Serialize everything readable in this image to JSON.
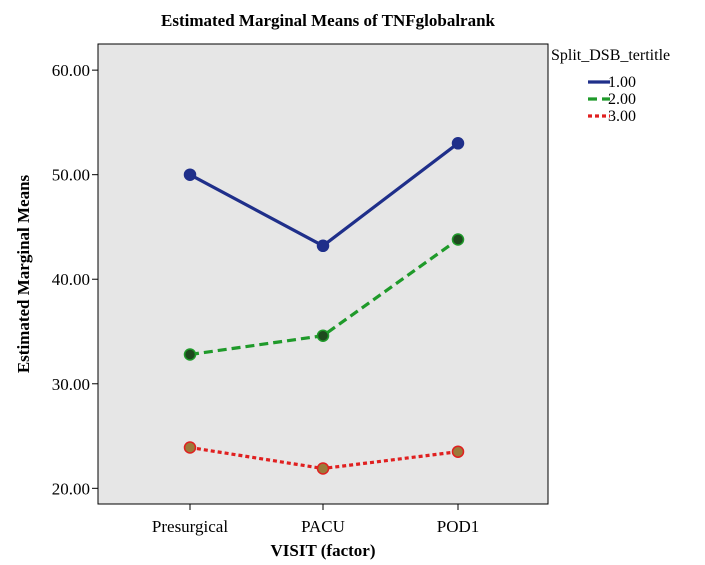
{
  "chart_data": {
    "type": "line",
    "title": "Estimated Marginal Means of TNFglobalrank",
    "xlabel": "VISIT (factor)",
    "ylabel": "Estimated Marginal Means",
    "categories": [
      "Presurgical",
      "PACU",
      "POD1"
    ],
    "yticks": [
      "20.00",
      "30.00",
      "40.00",
      "50.00",
      "60.00"
    ],
    "ylim": [
      18.5,
      62.5
    ],
    "grid": false,
    "legend": {
      "title": "Split_DSB_tertitle",
      "placement": "outside-top-right"
    },
    "series": [
      {
        "name": "1.00",
        "values": [
          50.0,
          43.2,
          53.0
        ],
        "color": "#1f2f8a",
        "dash": "solid",
        "marker_color": "#1f2f8a"
      },
      {
        "name": "2.00",
        "values": [
          32.8,
          34.6,
          43.8
        ],
        "color": "#1f9a2a",
        "dash": "dashed",
        "marker_color": "#1e4a1e"
      },
      {
        "name": "3.00",
        "values": [
          23.9,
          21.9,
          23.5
        ],
        "color": "#e02020",
        "dash": "dotted",
        "marker_color": "#9b7a3a"
      }
    ]
  }
}
